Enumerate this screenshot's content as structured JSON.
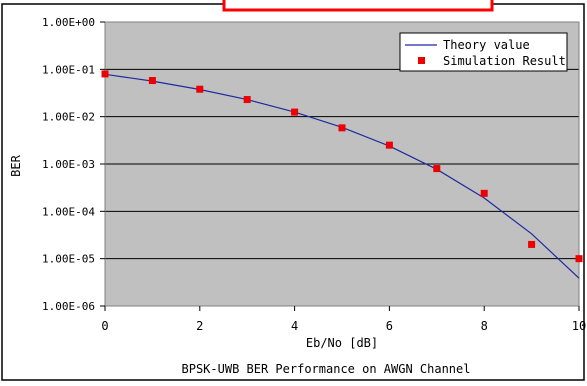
{
  "chart_data": {
    "type": "line",
    "title": "",
    "caption": "BPSK-UWB BER Performance on AWGN Channel",
    "xlabel": "Eb/No [dB]",
    "ylabel": "BER",
    "xlim": [
      0,
      10
    ],
    "ylim": [
      1e-06,
      1
    ],
    "y_scale": "log",
    "grid": true,
    "legend_position": "top-right",
    "x_ticks": [
      0,
      2,
      4,
      6,
      8,
      10
    ],
    "x_tick_labels": [
      "0",
      "2",
      "4",
      "6",
      "8",
      "10"
    ],
    "y_ticks": [
      1,
      0.1,
      0.01,
      0.001,
      0.0001,
      1e-05,
      1e-06
    ],
    "y_tick_labels": [
      "1.00E+00",
      "1.00E-01",
      "1.00E-02",
      "1.00E-03",
      "1.00E-04",
      "1.00E-05",
      "1.00E-06"
    ],
    "series": [
      {
        "name": "Theory value",
        "style": "line",
        "color": "#1f2aa0",
        "x": [
          0,
          1,
          2,
          3,
          4,
          5,
          6,
          7,
          8,
          9,
          10
        ],
        "y": [
          0.0786,
          0.0563,
          0.0375,
          0.0229,
          0.0125,
          0.00595,
          0.00239,
          0.000773,
          0.000191,
          3.36e-05,
          3.87e-06
        ]
      },
      {
        "name": "Simulation Result",
        "style": "marker",
        "color": "#ee0000",
        "x": [
          0,
          1,
          2,
          3,
          4,
          5,
          6,
          7,
          8,
          9,
          10
        ],
        "y": [
          0.08,
          0.058,
          0.038,
          0.023,
          0.0125,
          0.0058,
          0.0025,
          0.0008,
          0.00024,
          2e-05,
          1e-05
        ]
      }
    ]
  },
  "colors": {
    "plot_background": "#c0c0c0",
    "grid": "#000000",
    "banner": "#ff0000"
  }
}
